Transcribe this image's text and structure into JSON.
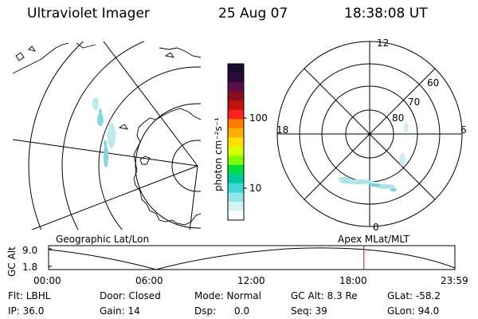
{
  "header": {
    "title": "Ultraviolet Imager",
    "date": "25 Aug 07",
    "time": "18:38:08 UT"
  },
  "colorbar": {
    "unit_label": "photon cm⁻²s⁻¹",
    "tick_labels": [
      "100",
      "10"
    ],
    "colors": [
      "#1a0f2b",
      "#2a0b3a",
      "#5a0f4a",
      "#8a1020",
      "#c01010",
      "#ff2020",
      "#ff7a00",
      "#ffb000",
      "#ffe000",
      "#d8ff00",
      "#80ff00",
      "#00e040",
      "#00c8a0",
      "#40d8d8",
      "#90e8e8",
      "#d0f4f4",
      "#ffffff"
    ]
  },
  "polar": {
    "mlt_labels": {
      "top": "12",
      "left": "18",
      "right": "6",
      "bottom": "0"
    },
    "lat_labels": [
      "60",
      "70",
      "80"
    ]
  },
  "timeline": {
    "left_label": "Geographic Lat/Lon",
    "right_label": "Apex MLat/MLT",
    "y_axis_label": "GC Alt",
    "y_ticks": [
      "9.0",
      "1.8"
    ],
    "x_ticks": [
      "00:00",
      "06:00",
      "12:00",
      "18:00",
      "23:59"
    ],
    "marker_color": "#d01010",
    "current_time_fraction": 0.776
  },
  "status": {
    "filter": "Flt: LBHL",
    "ip": "IP: 36.0",
    "door": "Door: Closed",
    "gain": "Gain: 14",
    "mode": "Mode: Normal",
    "dsp": "Dsp:      0.0",
    "gc_alt": "GC Alt: 8.3 Re",
    "seq": "Seq: 39",
    "glat": "GLat: -58.2",
    "glon": "GLon: 94.0"
  }
}
